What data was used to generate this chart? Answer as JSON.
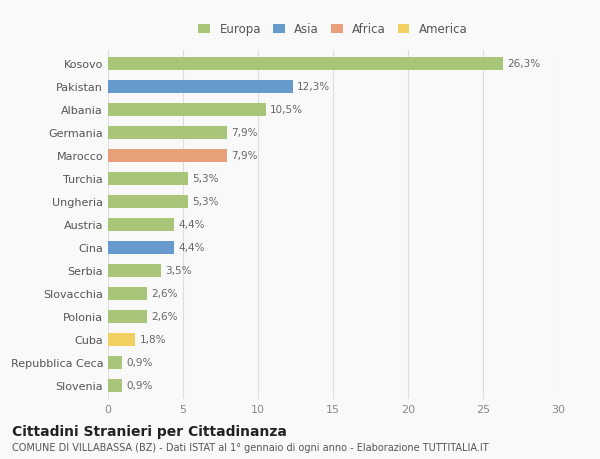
{
  "categories": [
    "Kosovo",
    "Pakistan",
    "Albania",
    "Germania",
    "Marocco",
    "Turchia",
    "Ungheria",
    "Austria",
    "Cina",
    "Serbia",
    "Slovacchia",
    "Polonia",
    "Cuba",
    "Repubblica Ceca",
    "Slovenia"
  ],
  "values": [
    26.3,
    12.3,
    10.5,
    7.9,
    7.9,
    5.3,
    5.3,
    4.4,
    4.4,
    3.5,
    2.6,
    2.6,
    1.8,
    0.9,
    0.9
  ],
  "labels": [
    "26,3%",
    "12,3%",
    "10,5%",
    "7,9%",
    "7,9%",
    "5,3%",
    "5,3%",
    "4,4%",
    "4,4%",
    "3,5%",
    "2,6%",
    "2,6%",
    "1,8%",
    "0,9%",
    "0,9%"
  ],
  "colors": [
    "#a8c57a",
    "#6699cc",
    "#a8c57a",
    "#a8c57a",
    "#e8a07a",
    "#a8c57a",
    "#a8c57a",
    "#a8c57a",
    "#6699cc",
    "#a8c57a",
    "#a8c57a",
    "#a8c57a",
    "#f0d060",
    "#a8c57a",
    "#a8c57a"
  ],
  "legend_labels": [
    "Europa",
    "Asia",
    "Africa",
    "America"
  ],
  "legend_colors": [
    "#a8c57a",
    "#6699cc",
    "#e8a07a",
    "#f0d060"
  ],
  "title": "Cittadini Stranieri per Cittadinanza",
  "subtitle": "COMUNE DI VILLABASSA (BZ) - Dati ISTAT al 1° gennaio di ogni anno - Elaborazione TUTTITALIA.IT",
  "xlim": [
    0,
    30
  ],
  "xticks": [
    0,
    5,
    10,
    15,
    20,
    25,
    30
  ],
  "bg_color": "#f9f9f9",
  "grid_color": "#dddddd",
  "bar_height": 0.55,
  "label_fontsize": 7.5,
  "tick_fontsize": 8,
  "title_fontsize": 10,
  "subtitle_fontsize": 7
}
